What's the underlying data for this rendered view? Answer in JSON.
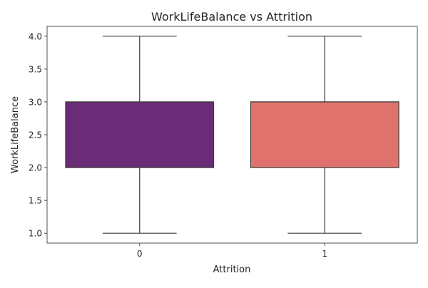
{
  "chart_data": {
    "type": "box",
    "title": "WorkLifeBalance vs Attrition",
    "xlabel": "Attrition",
    "ylabel": "WorkLifeBalance",
    "categories": [
      "0",
      "1"
    ],
    "boxes": [
      {
        "category": "0",
        "whisker_low": 1.0,
        "q1": 2.0,
        "median": 3.0,
        "q3": 3.0,
        "whisker_high": 4.0,
        "color": "#6a2c76"
      },
      {
        "category": "1",
        "whisker_low": 1.0,
        "q1": 2.0,
        "median": 3.0,
        "q3": 3.0,
        "whisker_high": 4.0,
        "color": "#e0726e"
      }
    ],
    "ylim": [
      0.85,
      4.15
    ],
    "yticks": [
      1.0,
      1.5,
      2.0,
      2.5,
      3.0,
      3.5,
      4.0
    ],
    "ytick_labels": [
      "1.0",
      "1.5",
      "2.0",
      "2.5",
      "3.0",
      "3.5",
      "4.0"
    ],
    "grid": false,
    "legend": "none"
  }
}
